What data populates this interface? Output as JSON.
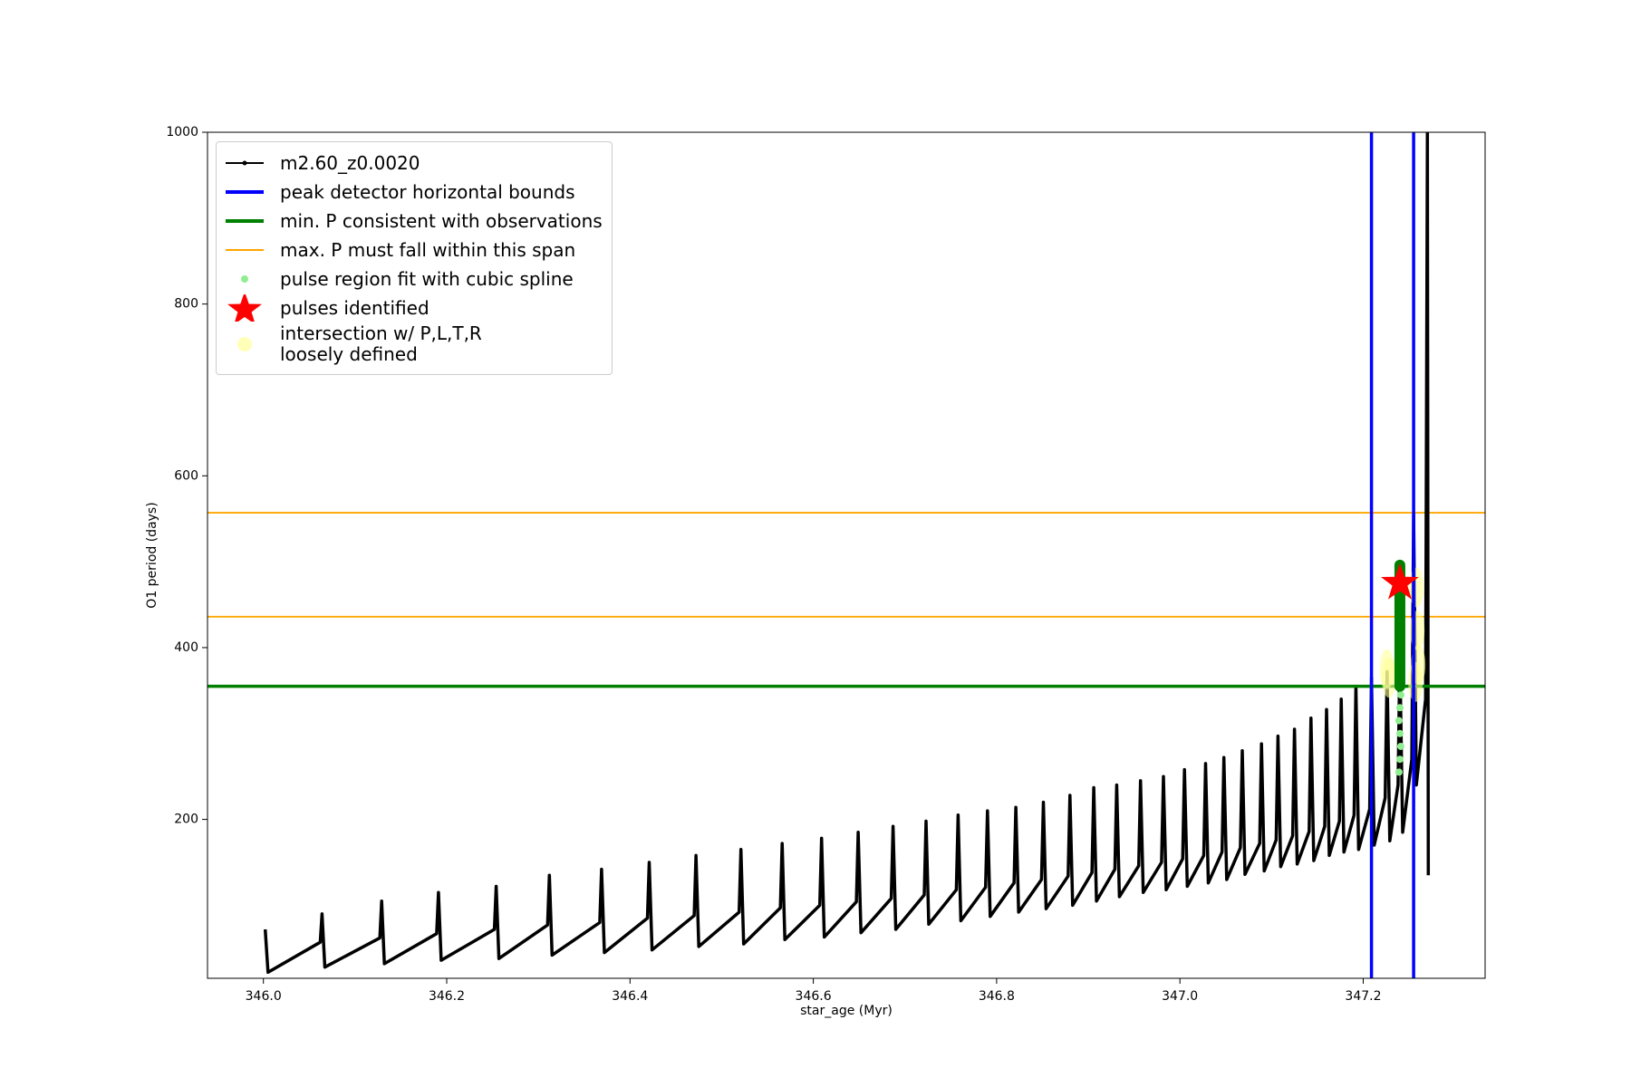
{
  "chart_data": {
    "type": "line",
    "x_label": "star_age (Myr)",
    "y_label": "O1 period (days)",
    "xlim": [
      345.939,
      347.333
    ],
    "ylim": [
      15,
      1000
    ],
    "xticks": [
      {
        "value": 346,
        "label": "346.0"
      },
      346.2,
      346.4,
      346.6,
      346.8,
      {
        "value": 347,
        "label": "347.0"
      },
      347.2
    ],
    "yticks": [
      200,
      400,
      600,
      800,
      1000
    ],
    "legend": "upper left",
    "series": [
      {
        "name": "m2.60_z0.0020",
        "color": "#000000",
        "x": [
          346.002,
          346.005,
          346.062,
          346.064,
          346.067,
          346.127,
          346.129,
          346.132,
          346.189,
          346.191,
          346.194,
          346.252,
          346.254,
          346.257,
          346.31,
          346.312,
          346.315,
          346.367,
          346.369,
          346.372,
          346.419,
          346.421,
          346.424,
          346.47,
          346.472,
          346.475,
          346.519,
          346.521,
          346.524,
          346.564,
          346.566,
          346.569,
          346.607,
          346.609,
          346.612,
          346.647,
          346.649,
          346.652,
          346.685,
          346.687,
          346.69,
          346.721,
          346.723,
          346.726,
          346.756,
          346.758,
          346.761,
          346.788,
          346.79,
          346.793,
          346.819,
          346.821,
          346.824,
          346.849,
          346.851,
          346.854,
          346.878,
          346.88,
          346.883,
          346.904,
          346.906,
          346.909,
          346.929,
          346.931,
          346.934,
          346.955,
          346.957,
          346.96,
          346.98,
          346.982,
          346.985,
          347.003,
          347.005,
          347.008,
          347.026,
          347.028,
          347.031,
          347.046,
          347.048,
          347.051,
          347.066,
          347.068,
          347.071,
          347.087,
          347.089,
          347.092,
          347.105,
          347.107,
          347.11,
          347.123,
          347.125,
          347.128,
          347.141,
          347.143,
          347.146,
          347.158,
          347.16,
          347.163,
          347.174,
          347.176,
          347.179,
          347.19,
          347.192,
          347.195,
          347.207,
          347.209,
          347.212,
          347.224,
          347.226,
          347.229,
          347.238,
          347.24,
          347.243,
          347.253,
          347.255,
          347.258,
          347.268,
          347.27,
          347.271
        ],
        "values": [
          72,
          22,
          57,
          90,
          28,
          62,
          105,
          32,
          67,
          115,
          36,
          72,
          122,
          38,
          77,
          135,
          42,
          80,
          142,
          45,
          85,
          150,
          48,
          88,
          158,
          52,
          92,
          165,
          55,
          97,
          172,
          60,
          100,
          178,
          63,
          104,
          185,
          68,
          108,
          192,
          72,
          112,
          198,
          78,
          118,
          205,
          82,
          121,
          210,
          87,
          126,
          214,
          92,
          130,
          220,
          96,
          134,
          228,
          100,
          138,
          237,
          105,
          142,
          240,
          110,
          146,
          245,
          115,
          150,
          250,
          118,
          154,
          258,
          122,
          158,
          265,
          126,
          162,
          272,
          130,
          167,
          280,
          136,
          172,
          288,
          140,
          176,
          297,
          145,
          181,
          305,
          148,
          186,
          318,
          152,
          192,
          328,
          158,
          198,
          340,
          162,
          205,
          355,
          165,
          212,
          365,
          170,
          225,
          372,
          175,
          240,
          390,
          185,
          270,
          555,
          240,
          340,
          1000,
          135
        ]
      }
    ],
    "vlines": {
      "name": "peak detector horizontal bounds",
      "color": "#0000ff",
      "x": [
        347.209,
        347.255
      ]
    },
    "hline_min": {
      "name": "min. P consistent with observations",
      "color": "#008000",
      "y": 355
    },
    "hlines_max": {
      "name": "max. P must fall within this span",
      "color": "#ffa500",
      "y": [
        436,
        557
      ]
    },
    "pulse_span": {
      "color": "#008000",
      "x": 347.24,
      "y": [
        355,
        496
      ]
    },
    "spline_fit": {
      "name": "pulse region fit with cubic spline",
      "color": "#90ee90",
      "x": [
        347.239,
        347.24,
        347.241,
        347.24,
        347.239,
        347.24,
        347.241,
        347.24
      ],
      "values": [
        255,
        270,
        285,
        300,
        315,
        330,
        345,
        360
      ]
    },
    "pulses": {
      "name": "pulses identified",
      "color": "#ff0000",
      "x": [
        347.24
      ],
      "values": [
        475
      ]
    },
    "intersections": {
      "name": "intersection w/ P,L,T,R\nloosely defined",
      "color": "#ffff99",
      "x": [
        347.226,
        347.228,
        347.258,
        347.259,
        347.26,
        347.257
      ],
      "values": [
        375,
        365,
        470,
        420,
        380,
        360
      ]
    }
  }
}
